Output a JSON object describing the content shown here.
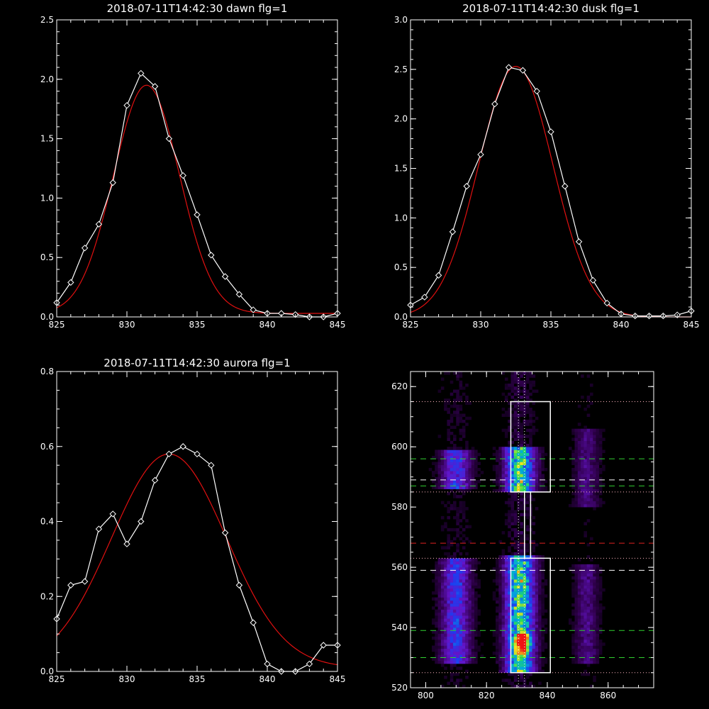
{
  "colors": {
    "background": "#000000",
    "axes": "#ffffff",
    "data_line": "#ffffff",
    "fit_line": "#e01010",
    "guide_green": "#30d030",
    "guide_red": "#e02020",
    "guide_white": "#ffffff",
    "guide_pink": "#ffb6c1"
  },
  "chart_data": [
    {
      "type": "line",
      "title": "2018-07-11T14:42:30 dawn flg=1",
      "xlim": [
        825,
        845
      ],
      "ylim": [
        0,
        2.5
      ],
      "xticks": [
        "825",
        "830",
        "835",
        "840",
        "845"
      ],
      "yticks": [
        "0.0",
        "0.5",
        "1.0",
        "1.5",
        "2.0",
        "2.5"
      ],
      "series": [
        {
          "marker": "diamond",
          "color": "#ffffff",
          "x": [
            825,
            826,
            827,
            828,
            829,
            830,
            831,
            832,
            833,
            834,
            835,
            836,
            837,
            838,
            839,
            840,
            841,
            842,
            843,
            844,
            845
          ],
          "y": [
            0.12,
            0.29,
            0.58,
            0.78,
            1.13,
            1.78,
            2.05,
            1.94,
            1.5,
            1.19,
            0.86,
            0.52,
            0.34,
            0.19,
            0.06,
            0.03,
            0.03,
            0.02,
            0.0,
            0.0,
            0.03
          ]
        },
        {
          "color": "#e01010",
          "fit": "gaussian",
          "amplitude": 1.92,
          "center": 831.4,
          "sigma": 2.35,
          "offset": 0.03
        }
      ]
    },
    {
      "type": "line",
      "title": "2018-07-11T14:42:30 dusk flg=1",
      "xlim": [
        825,
        845
      ],
      "ylim": [
        0,
        3.0
      ],
      "xticks": [
        "825",
        "830",
        "835",
        "840",
        "845"
      ],
      "yticks": [
        "0.0",
        "0.5",
        "1.0",
        "1.5",
        "2.0",
        "2.5",
        "3.0"
      ],
      "series": [
        {
          "marker": "diamond",
          "color": "#ffffff",
          "x": [
            825,
            826,
            827,
            828,
            829,
            830,
            831,
            832,
            833,
            834,
            835,
            836,
            837,
            838,
            839,
            840,
            841,
            842,
            843,
            844,
            845
          ],
          "y": [
            0.12,
            0.2,
            0.42,
            0.86,
            1.32,
            1.64,
            2.15,
            2.52,
            2.49,
            2.28,
            1.87,
            1.32,
            0.76,
            0.37,
            0.14,
            0.03,
            0.01,
            0.01,
            0.01,
            0.02,
            0.06
          ]
        },
        {
          "color": "#e01010",
          "fit": "gaussian",
          "amplitude": 2.53,
          "center": 832.5,
          "sigma": 2.65,
          "offset": 0.0
        }
      ]
    },
    {
      "type": "line",
      "title": "2018-07-11T14:42:30 aurora flg=1",
      "xlim": [
        825,
        845
      ],
      "ylim": [
        0,
        0.8
      ],
      "xticks": [
        "825",
        "830",
        "835",
        "840",
        "845"
      ],
      "yticks": [
        "0.0",
        "0.2",
        "0.4",
        "0.6",
        "0.8"
      ],
      "series": [
        {
          "marker": "diamond",
          "color": "#ffffff",
          "x": [
            825,
            826,
            827,
            828,
            829,
            830,
            831,
            832,
            833,
            834,
            835,
            836,
            837,
            838,
            839,
            840,
            841,
            842,
            843,
            844,
            845
          ],
          "y": [
            0.14,
            0.23,
            0.24,
            0.38,
            0.42,
            0.34,
            0.4,
            0.51,
            0.58,
            0.6,
            0.58,
            0.55,
            0.37,
            0.23,
            0.13,
            0.02,
            0.0,
            0.0,
            0.02,
            0.07,
            0.07
          ]
        },
        {
          "color": "#e01010",
          "fit": "gaussian",
          "amplitude": 0.57,
          "center": 833.0,
          "sigma": 4.1,
          "offset": 0.01
        }
      ]
    },
    {
      "type": "heatmap",
      "title": "",
      "xlim": [
        795,
        875
      ],
      "ylim": [
        520,
        625
      ],
      "xticks": [
        "800",
        "820",
        "840",
        "860"
      ],
      "yticks": [
        "520",
        "540",
        "560",
        "580",
        "600",
        "620"
      ],
      "colormap": "rainbow-on-black",
      "emission_columns": [
        {
          "x_center": 810,
          "x_width": 5,
          "y_ranges": [
            [
              586,
              598
            ],
            [
              528,
              562
            ]
          ],
          "peak": 0.55
        },
        {
          "x_center": 831,
          "x_width": 5,
          "y_ranges": [
            [
              585,
              599
            ],
            [
              525,
              563
            ]
          ],
          "peak": 1.0
        },
        {
          "x_center": 853,
          "x_width": 4,
          "y_ranges": [
            [
              580,
              605
            ],
            [
              528,
              560
            ]
          ],
          "peak": 0.25
        }
      ],
      "hot_spot": {
        "x": 832,
        "y": 535
      },
      "boxes": [
        {
          "x": [
            828,
            841
          ],
          "y": [
            585,
            615
          ]
        },
        {
          "x": [
            828,
            841
          ],
          "y": [
            525,
            563
          ]
        },
        {
          "x": [
            832.5,
            834.5
          ],
          "y": [
            563,
            585
          ]
        }
      ],
      "guide_lines": [
        {
          "y": 615,
          "style": "dotted",
          "color": "#ffb6c1"
        },
        {
          "y": 596,
          "style": "dashed",
          "color": "#30d030"
        },
        {
          "y": 589,
          "style": "dashed",
          "color": "#ffffff"
        },
        {
          "y": 587,
          "style": "dashed",
          "color": "#30d030"
        },
        {
          "y": 585,
          "style": "dotted",
          "color": "#ffb6c1"
        },
        {
          "y": 568,
          "style": "dashed",
          "color": "#e02020"
        },
        {
          "y": 563,
          "style": "dotted",
          "color": "#ffb6c1"
        },
        {
          "y": 559,
          "style": "dashed",
          "color": "#ffffff"
        },
        {
          "y": 539,
          "style": "dashed",
          "color": "#30d030"
        },
        {
          "y": 530,
          "style": "dashed",
          "color": "#30d030"
        },
        {
          "y": 525,
          "style": "dotted",
          "color": "#ffb6c1"
        }
      ],
      "vertical_guides": [
        {
          "x": 830.5,
          "style": "dotted",
          "color": "#ffffff"
        },
        {
          "x": 832.5,
          "style": "dotted",
          "color": "#ffffff"
        }
      ]
    }
  ]
}
